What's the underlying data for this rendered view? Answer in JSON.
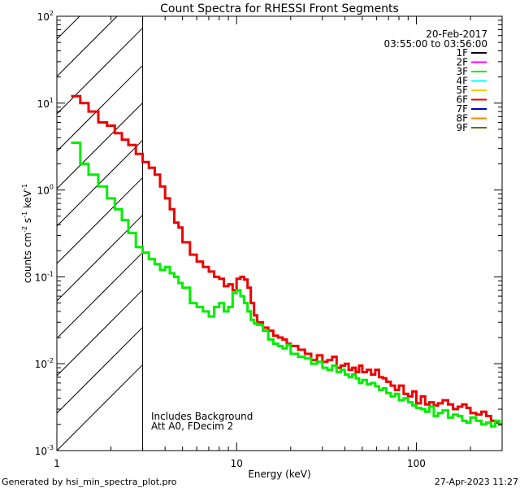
{
  "chart_data": {
    "type": "line",
    "title": "Count Spectra for RHESSI Front Segments",
    "xlabel": "Energy (keV)",
    "ylabel": "counts cm",
    "ylabel_exp1": "-2",
    "ylabel_s": " s",
    "ylabel_exp2": "-1",
    "ylabel_kev": " keV",
    "ylabel_exp3": "-1",
    "xscale": "log",
    "yscale": "log",
    "xlim": [
      1,
      300
    ],
    "ylim": [
      0.001,
      100
    ],
    "x_ticks": [
      {
        "value": 1,
        "label": "1"
      },
      {
        "value": 10,
        "label": "10"
      },
      {
        "value": 100,
        "label": "100"
      }
    ],
    "y_ticks": [
      {
        "value": 0.001,
        "base": "10",
        "exp": "-3"
      },
      {
        "value": 0.01,
        "base": "10",
        "exp": "-2"
      },
      {
        "value": 0.1,
        "base": "10",
        "exp": "-1"
      },
      {
        "value": 1,
        "base": "10",
        "exp": "0"
      },
      {
        "value": 10,
        "base": "10",
        "exp": "1"
      },
      {
        "value": 100,
        "base": "10",
        "exp": "2"
      }
    ],
    "hatched_region": [
      1,
      3
    ],
    "date": "20-Feb-2017",
    "time_range": "03:55:00 to 03:56:00",
    "legend": [
      {
        "name": "1F",
        "color": "#000000"
      },
      {
        "name": "2F",
        "color": "#ff00ff"
      },
      {
        "name": "3F",
        "color": "#00ee00"
      },
      {
        "name": "4F",
        "color": "#00ffff"
      },
      {
        "name": "5F",
        "color": "#ffcc00"
      },
      {
        "name": "6F",
        "color": "#ee0000"
      },
      {
        "name": "7F",
        "color": "#0000cc"
      },
      {
        "name": "8F",
        "color": "#ff8800"
      },
      {
        "name": "9F",
        "color": "#6b6b00"
      }
    ],
    "annotations": [
      "Includes Background",
      "Att A0, FDecim 2"
    ],
    "series": [
      {
        "name": "6F",
        "color": "#ee0000",
        "edges": [
          1.2,
          1.35,
          1.5,
          1.7,
          1.9,
          2.1,
          2.3,
          2.5,
          2.75,
          3,
          3.25,
          3.5,
          3.75,
          4,
          4.25,
          4.5,
          4.75,
          5,
          5.5,
          6,
          6.5,
          7,
          7.5,
          8,
          8.5,
          9,
          9.5,
          10,
          10.5,
          11,
          11.5,
          12,
          12.5,
          13,
          14,
          15,
          16,
          17,
          18,
          19,
          20,
          22,
          24,
          26,
          28,
          30,
          32,
          34,
          36,
          38,
          40,
          42,
          44,
          46,
          48,
          50,
          53,
          56,
          59,
          62,
          65,
          68,
          72,
          76,
          80,
          85,
          90,
          95,
          100,
          106,
          112,
          118,
          125,
          132,
          140,
          150,
          160,
          170,
          180,
          190,
          200,
          215,
          230,
          245,
          260,
          275,
          290,
          300
        ],
        "values": [
          12,
          10,
          8,
          6,
          5.5,
          4.5,
          3.8,
          3.3,
          2.6,
          2.1,
          1.8,
          1.5,
          1.1,
          0.8,
          0.6,
          0.42,
          0.37,
          0.25,
          0.18,
          0.15,
          0.13,
          0.115,
          0.1,
          0.095,
          0.078,
          0.082,
          0.07,
          0.095,
          0.1,
          0.093,
          0.075,
          0.05,
          0.036,
          0.03,
          0.026,
          0.024,
          0.021,
          0.02,
          0.019,
          0.017,
          0.016,
          0.0145,
          0.013,
          0.011,
          0.0125,
          0.0105,
          0.011,
          0.012,
          0.009,
          0.0095,
          0.01,
          0.0085,
          0.009,
          0.008,
          0.0095,
          0.008,
          0.0085,
          0.0075,
          0.0085,
          0.007,
          0.0068,
          0.0062,
          0.0056,
          0.005,
          0.0056,
          0.0045,
          0.0042,
          0.0048,
          0.0035,
          0.0042,
          0.0034,
          0.0036,
          0.0033,
          0.0035,
          0.0038,
          0.0034,
          0.003,
          0.0032,
          0.0034,
          0.0031,
          0.0027,
          0.0026,
          0.0028,
          0.0025,
          0.0022,
          0.0021,
          0.002
        ]
      },
      {
        "name": "3F",
        "color": "#00ee00",
        "edges": [
          1.2,
          1.35,
          1.5,
          1.7,
          1.9,
          2.1,
          2.3,
          2.5,
          2.75,
          3,
          3.25,
          3.5,
          3.75,
          4,
          4.25,
          4.5,
          4.75,
          5,
          5.5,
          6,
          6.5,
          7,
          7.5,
          8,
          8.5,
          9,
          9.5,
          10,
          10.5,
          11,
          11.5,
          12,
          12.5,
          13,
          14,
          15,
          16,
          17,
          18,
          19,
          20,
          22,
          24,
          26,
          28,
          30,
          32,
          34,
          36,
          38,
          40,
          42,
          44,
          46,
          48,
          50,
          53,
          56,
          59,
          62,
          65,
          68,
          72,
          76,
          80,
          85,
          90,
          95,
          100,
          106,
          112,
          118,
          125,
          132,
          140,
          150,
          160,
          170,
          180,
          190,
          200,
          215,
          230,
          245,
          260,
          275,
          290,
          300
        ],
        "values": [
          3.5,
          2,
          1.5,
          1.1,
          0.8,
          0.6,
          0.45,
          0.32,
          0.22,
          0.19,
          0.16,
          0.14,
          0.12,
          0.13,
          0.11,
          0.1,
          0.085,
          0.075,
          0.05,
          0.045,
          0.04,
          0.035,
          0.045,
          0.05,
          0.04,
          0.045,
          0.065,
          0.07,
          0.06,
          0.05,
          0.04,
          0.032,
          0.029,
          0.028,
          0.024,
          0.019,
          0.017,
          0.016,
          0.015,
          0.0165,
          0.013,
          0.012,
          0.0115,
          0.01,
          0.0105,
          0.009,
          0.0085,
          0.0095,
          0.008,
          0.0085,
          0.0075,
          0.007,
          0.0075,
          0.0068,
          0.006,
          0.0065,
          0.0058,
          0.006,
          0.0055,
          0.005,
          0.0052,
          0.0046,
          0.0042,
          0.0045,
          0.0038,
          0.004,
          0.0036,
          0.0033,
          0.0031,
          0.003,
          0.0028,
          0.0032,
          0.0025,
          0.0027,
          0.0029,
          0.0024,
          0.0026,
          0.0025,
          0.0022,
          0.0021,
          0.0024,
          0.0022,
          0.002,
          0.0021,
          0.0019,
          0.0022,
          0.002
        ]
      }
    ]
  },
  "footer": {
    "generated_by": "Generated by hsi_min_spectra_plot.pro",
    "timestamp": "27-Apr-2023 11:27"
  }
}
